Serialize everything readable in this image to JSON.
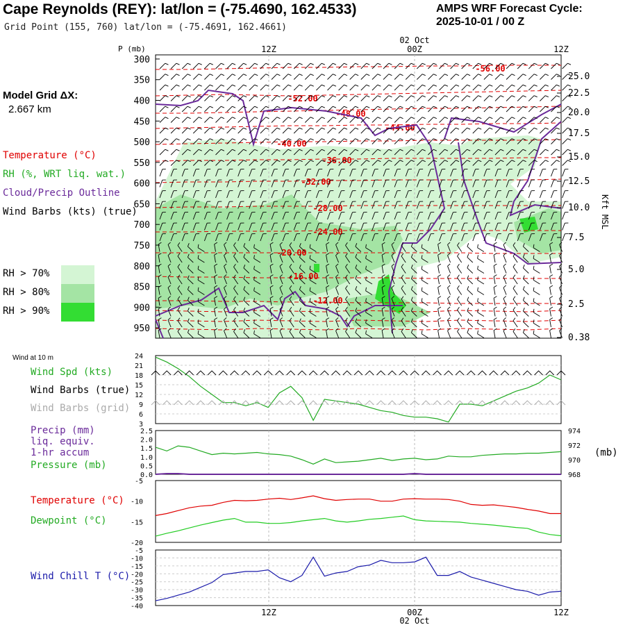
{
  "header": {
    "title": "Cape Reynolds (REY):  lat/lon = (-75.4690, 162.4533)",
    "grid_point": "Grid Point (155, 760) lat/lon = (-75.4691, 162.4661)",
    "cycle_label": "AMPS WRF Forecast Cycle:",
    "cycle_value": "2025-10-01 / 00  Z"
  },
  "model_grid": {
    "line1": "Model Grid ΔX:",
    "line2": "2.667 km"
  },
  "colors": {
    "temperature": "#e00000",
    "rh_green": "#22aa22",
    "cloud": "#6a2a9a",
    "wind": "#000000",
    "wind_grid": "#aaaaaa",
    "precip": "#6a2a9a",
    "pressure": "#22aa22",
    "dewpoint": "#22cc22",
    "windchill": "#1a1aaa",
    "rh70": "#d4f5d4",
    "rh80": "#a4e4a4",
    "rh90": "#33dd33"
  },
  "legend": {
    "temperature": "Temperature (°C)",
    "rh": "RH (%, WRT liq. wat.)",
    "cloud": "Cloud/Precip Outline",
    "wind": "Wind Barbs (kts) (true)",
    "rh70": "RH > 70%",
    "rh80": "RH > 80%",
    "rh90": "RH > 90%"
  },
  "time_axis": {
    "top_date": "02 Oct",
    "bottom_date": "02 Oct",
    "ticks": [
      "12Z",
      "00Z",
      "12Z"
    ]
  },
  "chart_data": [
    {
      "type": "contour",
      "panel": "cross-section",
      "ylabel": "P (mb)",
      "y_right_label": "Kft MSL",
      "pressure_ticks": [
        300,
        350,
        400,
        450,
        500,
        550,
        600,
        650,
        700,
        750,
        800,
        850,
        900,
        950
      ],
      "height_ticks": [
        "25.0",
        "22.5",
        "20.0",
        "17.5",
        "15.0",
        "12.5",
        "10.0",
        "7.5",
        "5.0",
        "2.5",
        "0.38"
      ],
      "temperature_contour_labels": [
        "-56.00",
        "-52.00",
        "-48.00",
        "-44.00",
        "-40.00",
        "-36.00",
        "-32.00",
        "-28.00",
        "-24.00",
        "-20.00",
        "-16.00",
        "-12.00"
      ]
    },
    {
      "type": "line",
      "panel": "wind",
      "small_label": "Wind at 10 m",
      "labels": {
        "speed": "Wind Spd (kts)",
        "barbs_true": "Wind Barbs (true)",
        "barbs_grid": "Wind Barbs (grid)"
      },
      "y_ticks": [
        3,
        6,
        9,
        12,
        15,
        18,
        21,
        24
      ],
      "ylim": [
        3,
        24
      ],
      "x": [
        0,
        1,
        2,
        3,
        4,
        5,
        6,
        7,
        8,
        9,
        10,
        11,
        12,
        13,
        14,
        15,
        16,
        17,
        18,
        19,
        20,
        21,
        22,
        23,
        24,
        25,
        26,
        27,
        28,
        29,
        30,
        31,
        32,
        33,
        34,
        35,
        36
      ],
      "series": [
        {
          "name": "Wind Spd (kts)",
          "values": [
            23.5,
            22,
            20,
            17.5,
            14.5,
            12,
            9.5,
            9.5,
            8.5,
            9.5,
            8,
            12.5,
            14.5,
            11,
            4,
            10.5,
            10,
            9.5,
            9,
            8,
            7,
            6.5,
            5.5,
            5,
            5,
            4.5,
            3.5,
            9,
            9,
            8.5,
            10,
            11.5,
            13,
            14,
            15.5,
            18,
            16.5
          ]
        }
      ]
    },
    {
      "type": "line",
      "panel": "precip-pressure",
      "labels": {
        "precip": "Precip (mm)",
        "liq": "liq. equiv.",
        "accum": "1-hr accum",
        "pressure": "Pressure (mb)",
        "pressure_unit": "(mb)"
      },
      "y_left_ticks": [
        "0.0",
        "0.5",
        "1.0",
        "1.5",
        "2.0",
        "2.5"
      ],
      "y_right_ticks": [
        "968",
        "970",
        "972",
        "974"
      ],
      "ylim_left": [
        0,
        2.5
      ],
      "ylim_right": [
        968,
        974
      ],
      "series": [
        {
          "name": "Pressure (mb)",
          "values": [
            971.7,
            971.2,
            971.9,
            971.7,
            971.2,
            970.7,
            970.9,
            970.8,
            970.9,
            971.0,
            970.8,
            970.7,
            970.5,
            970.0,
            969.4,
            970.1,
            969.6,
            969.7,
            969.8,
            970.0,
            970.2,
            969.9,
            970.1,
            970.2,
            970.0,
            970.1,
            970.5,
            970.4,
            970.4,
            970.6,
            970.7,
            970.8,
            970.8,
            970.9,
            970.9,
            971.0,
            971.1
          ]
        },
        {
          "name": "Precip (mm)",
          "values": [
            0,
            0.04,
            0.04,
            0,
            0,
            0,
            0,
            0,
            0,
            0,
            0,
            0,
            0,
            0,
            0,
            0,
            0,
            0,
            0,
            0,
            0,
            0,
            0,
            0.04,
            0,
            0,
            0,
            0,
            0,
            0,
            0,
            0,
            0,
            0,
            0,
            0,
            0
          ]
        }
      ]
    },
    {
      "type": "line",
      "panel": "temperature",
      "labels": {
        "temperature": "Temperature (°C)",
        "dewpoint": "Dewpoint (°C)"
      },
      "y_ticks": [
        "-5",
        "-10",
        "-15",
        "-20"
      ],
      "ylim": [
        -20,
        -5
      ],
      "series": [
        {
          "name": "Temperature (°C)",
          "values": [
            -13.5,
            -13,
            -12.3,
            -11.6,
            -11.2,
            -11,
            -10.3,
            -9.8,
            -9.9,
            -9.8,
            -9.5,
            -9.3,
            -9.6,
            -9.2,
            -8.7,
            -9.4,
            -9.8,
            -9.6,
            -9.5,
            -9.5,
            -10,
            -10,
            -9.5,
            -9.4,
            -9.5,
            -9.5,
            -9.6,
            -10,
            -10.8,
            -11,
            -10.9,
            -11.2,
            -11.5,
            -12,
            -12.4,
            -13,
            -13
          ]
        },
        {
          "name": "Dewpoint (°C)",
          "values": [
            -18.5,
            -17.8,
            -17.2,
            -16.5,
            -15.8,
            -15.2,
            -14.6,
            -14.2,
            -15.1,
            -15.1,
            -15.4,
            -15.4,
            -15.2,
            -14.8,
            -14.5,
            -14.2,
            -14.8,
            -15.1,
            -14.8,
            -14.4,
            -14.2,
            -13.9,
            -13.6,
            -14.5,
            -14.8,
            -14.9,
            -15,
            -15.1,
            -15.4,
            -15.6,
            -15.8,
            -16.1,
            -16.4,
            -16.6,
            -17.5,
            -18.1,
            -18.4
          ]
        }
      ]
    },
    {
      "type": "line",
      "panel": "windchill",
      "labels": {
        "windchill": "Wind Chill T (°C)"
      },
      "y_ticks": [
        "-5",
        "-10",
        "-15",
        "-20",
        "-25",
        "-30",
        "-35",
        "-40"
      ],
      "ylim": [
        -40,
        -5
      ],
      "series": [
        {
          "name": "Wind Chill T (°C)",
          "values": [
            -37,
            -35.5,
            -33.5,
            -31.5,
            -28.5,
            -25.5,
            -20.5,
            -19.5,
            -18.5,
            -18.5,
            -17.5,
            -22.5,
            -25,
            -21,
            -9.5,
            -21.5,
            -19.5,
            -18.5,
            -15.5,
            -14.5,
            -11.5,
            -13,
            -13,
            -12.5,
            -9.5,
            -21,
            -21,
            -18.5,
            -22,
            -24,
            -26,
            -28,
            -30,
            -31,
            -33.5,
            -31.5,
            -31
          ]
        }
      ]
    }
  ]
}
